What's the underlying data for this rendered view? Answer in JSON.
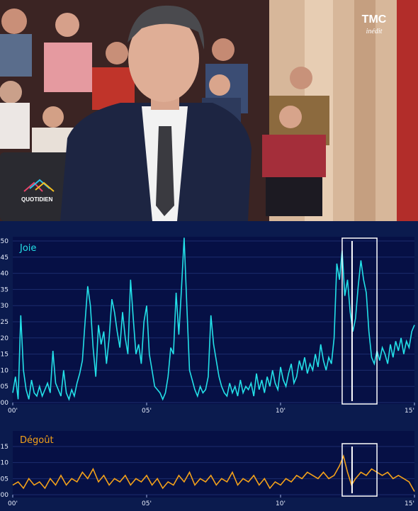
{
  "video": {
    "channel_logo": "TMC",
    "channel_subtitle": "inédit",
    "show_logo": "QUOTIDIEN",
    "colors": {
      "accent": "#ffffff"
    }
  },
  "chart_data": [
    {
      "type": "line",
      "series": [
        {
          "name": "Joie",
          "color": "#23e0e8"
        }
      ],
      "x_ticks": [
        "00'",
        "05'",
        "10'",
        "15'"
      ],
      "y_ticks": [
        "00",
        "05",
        "10",
        "15",
        "20",
        "25",
        "30",
        "35",
        "40",
        "45",
        "50"
      ],
      "xlim": [
        0,
        15
      ],
      "ylim": [
        0,
        50
      ],
      "grid": true,
      "points": [
        [
          0.0,
          3
        ],
        [
          0.1,
          8
        ],
        [
          0.2,
          1
        ],
        [
          0.3,
          27
        ],
        [
          0.4,
          10
        ],
        [
          0.5,
          4
        ],
        [
          0.6,
          1
        ],
        [
          0.7,
          7
        ],
        [
          0.8,
          3
        ],
        [
          0.9,
          2
        ],
        [
          1.0,
          5
        ],
        [
          1.1,
          2
        ],
        [
          1.2,
          4
        ],
        [
          1.3,
          6
        ],
        [
          1.4,
          3
        ],
        [
          1.5,
          16
        ],
        [
          1.6,
          6
        ],
        [
          1.7,
          4
        ],
        [
          1.8,
          2
        ],
        [
          1.9,
          10
        ],
        [
          2.0,
          3
        ],
        [
          2.1,
          1
        ],
        [
          2.2,
          4
        ],
        [
          2.3,
          2
        ],
        [
          2.4,
          6
        ],
        [
          2.5,
          9
        ],
        [
          2.6,
          13
        ],
        [
          2.7,
          25
        ],
        [
          2.8,
          36
        ],
        [
          2.9,
          30
        ],
        [
          3.0,
          17
        ],
        [
          3.1,
          8
        ],
        [
          3.2,
          24
        ],
        [
          3.3,
          18
        ],
        [
          3.4,
          22
        ],
        [
          3.5,
          12
        ],
        [
          3.6,
          20
        ],
        [
          3.7,
          32
        ],
        [
          3.8,
          28
        ],
        [
          3.9,
          22
        ],
        [
          4.0,
          17
        ],
        [
          4.1,
          28
        ],
        [
          4.2,
          20
        ],
        [
          4.3,
          15
        ],
        [
          4.4,
          38
        ],
        [
          4.5,
          26
        ],
        [
          4.6,
          15
        ],
        [
          4.7,
          18
        ],
        [
          4.8,
          12
        ],
        [
          4.9,
          25
        ],
        [
          5.0,
          30
        ],
        [
          5.1,
          15
        ],
        [
          5.2,
          10
        ],
        [
          5.3,
          5
        ],
        [
          5.4,
          4
        ],
        [
          5.5,
          3
        ],
        [
          5.6,
          1
        ],
        [
          5.7,
          3
        ],
        [
          5.8,
          8
        ],
        [
          5.9,
          17
        ],
        [
          6.0,
          15
        ],
        [
          6.1,
          34
        ],
        [
          6.2,
          21
        ],
        [
          6.3,
          35
        ],
        [
          6.4,
          51
        ],
        [
          6.5,
          30
        ],
        [
          6.6,
          10
        ],
        [
          6.7,
          7
        ],
        [
          6.8,
          4
        ],
        [
          6.9,
          2
        ],
        [
          7.0,
          5
        ],
        [
          7.1,
          3
        ],
        [
          7.2,
          4
        ],
        [
          7.3,
          8
        ],
        [
          7.4,
          27
        ],
        [
          7.5,
          18
        ],
        [
          7.6,
          13
        ],
        [
          7.7,
          8
        ],
        [
          7.8,
          5
        ],
        [
          7.9,
          3
        ],
        [
          8.0,
          2
        ],
        [
          8.1,
          6
        ],
        [
          8.2,
          3
        ],
        [
          8.3,
          5
        ],
        [
          8.4,
          2
        ],
        [
          8.5,
          7
        ],
        [
          8.6,
          3
        ],
        [
          8.7,
          5
        ],
        [
          8.8,
          4
        ],
        [
          8.9,
          6
        ],
        [
          9.0,
          2
        ],
        [
          9.1,
          9
        ],
        [
          9.2,
          4
        ],
        [
          9.3,
          7
        ],
        [
          9.4,
          3
        ],
        [
          9.5,
          8
        ],
        [
          9.6,
          5
        ],
        [
          9.7,
          10
        ],
        [
          9.8,
          6
        ],
        [
          9.9,
          4
        ],
        [
          10.0,
          11
        ],
        [
          10.1,
          7
        ],
        [
          10.2,
          5
        ],
        [
          10.3,
          9
        ],
        [
          10.4,
          12
        ],
        [
          10.5,
          6
        ],
        [
          10.6,
          8
        ],
        [
          10.7,
          13
        ],
        [
          10.8,
          10
        ],
        [
          10.9,
          14
        ],
        [
          11.0,
          9
        ],
        [
          11.1,
          12
        ],
        [
          11.2,
          10
        ],
        [
          11.3,
          15
        ],
        [
          11.4,
          11
        ],
        [
          11.5,
          18
        ],
        [
          11.6,
          13
        ],
        [
          11.7,
          10
        ],
        [
          11.8,
          14
        ],
        [
          11.9,
          12
        ],
        [
          12.0,
          20
        ],
        [
          12.1,
          43
        ],
        [
          12.2,
          38
        ],
        [
          12.3,
          47
        ],
        [
          12.4,
          33
        ],
        [
          12.5,
          38
        ],
        [
          12.6,
          28
        ],
        [
          12.7,
          22
        ],
        [
          12.8,
          26
        ],
        [
          12.9,
          36
        ],
        [
          13.0,
          44
        ],
        [
          13.1,
          38
        ],
        [
          13.2,
          34
        ],
        [
          13.3,
          22
        ],
        [
          13.4,
          14
        ],
        [
          13.5,
          12
        ],
        [
          13.6,
          16
        ],
        [
          13.7,
          13
        ],
        [
          13.8,
          17
        ],
        [
          13.9,
          15
        ],
        [
          14.0,
          12
        ],
        [
          14.1,
          18
        ],
        [
          14.2,
          14
        ],
        [
          14.3,
          19
        ],
        [
          14.4,
          16
        ],
        [
          14.5,
          20
        ],
        [
          14.6,
          15
        ],
        [
          14.7,
          19
        ],
        [
          14.8,
          17
        ],
        [
          14.9,
          22
        ],
        [
          15.0,
          24
        ]
      ],
      "highlight": {
        "x_start": 12.3,
        "x_end": 13.6,
        "cursor_x": 12.67
      }
    },
    {
      "type": "line",
      "series": [
        {
          "name": "Dégoût",
          "color": "#f3a11a"
        }
      ],
      "x_ticks": [
        "00'",
        "05'",
        "10'",
        "15'"
      ],
      "y_ticks": [
        "00",
        "05",
        "10",
        "15"
      ],
      "xlim": [
        0,
        15
      ],
      "ylim": [
        0,
        15
      ],
      "grid": true,
      "points": [
        [
          0.0,
          3
        ],
        [
          0.2,
          4
        ],
        [
          0.4,
          2
        ],
        [
          0.6,
          5
        ],
        [
          0.8,
          3
        ],
        [
          1.0,
          4
        ],
        [
          1.2,
          2
        ],
        [
          1.4,
          5
        ],
        [
          1.6,
          3
        ],
        [
          1.8,
          6
        ],
        [
          2.0,
          3
        ],
        [
          2.2,
          5
        ],
        [
          2.4,
          4
        ],
        [
          2.6,
          7
        ],
        [
          2.8,
          5
        ],
        [
          3.0,
          8
        ],
        [
          3.2,
          4
        ],
        [
          3.4,
          6
        ],
        [
          3.6,
          3
        ],
        [
          3.8,
          5
        ],
        [
          4.0,
          4
        ],
        [
          4.2,
          6
        ],
        [
          4.4,
          3
        ],
        [
          4.6,
          5
        ],
        [
          4.8,
          4
        ],
        [
          5.0,
          6
        ],
        [
          5.2,
          3
        ],
        [
          5.4,
          5
        ],
        [
          5.6,
          2
        ],
        [
          5.8,
          4
        ],
        [
          6.0,
          3
        ],
        [
          6.2,
          6
        ],
        [
          6.4,
          4
        ],
        [
          6.6,
          7
        ],
        [
          6.8,
          3
        ],
        [
          7.0,
          5
        ],
        [
          7.2,
          4
        ],
        [
          7.4,
          6
        ],
        [
          7.6,
          3
        ],
        [
          7.8,
          5
        ],
        [
          8.0,
          4
        ],
        [
          8.2,
          7
        ],
        [
          8.4,
          3
        ],
        [
          8.6,
          5
        ],
        [
          8.8,
          4
        ],
        [
          9.0,
          6
        ],
        [
          9.2,
          3
        ],
        [
          9.4,
          5
        ],
        [
          9.6,
          2
        ],
        [
          9.8,
          4
        ],
        [
          10.0,
          3
        ],
        [
          10.2,
          5
        ],
        [
          10.4,
          4
        ],
        [
          10.6,
          6
        ],
        [
          10.8,
          5
        ],
        [
          11.0,
          7
        ],
        [
          11.2,
          6
        ],
        [
          11.4,
          5
        ],
        [
          11.6,
          7
        ],
        [
          11.8,
          5
        ],
        [
          12.0,
          6
        ],
        [
          12.2,
          9
        ],
        [
          12.35,
          12
        ],
        [
          12.5,
          7
        ],
        [
          12.65,
          3
        ],
        [
          12.8,
          5
        ],
        [
          13.0,
          7
        ],
        [
          13.2,
          6
        ],
        [
          13.4,
          8
        ],
        [
          13.6,
          7
        ],
        [
          13.8,
          6
        ],
        [
          14.0,
          7
        ],
        [
          14.2,
          5
        ],
        [
          14.4,
          6
        ],
        [
          14.6,
          5
        ],
        [
          14.8,
          4
        ],
        [
          15.0,
          1
        ]
      ],
      "highlight": {
        "x_start": 12.3,
        "x_end": 13.6,
        "cursor_x": 12.67
      }
    }
  ]
}
